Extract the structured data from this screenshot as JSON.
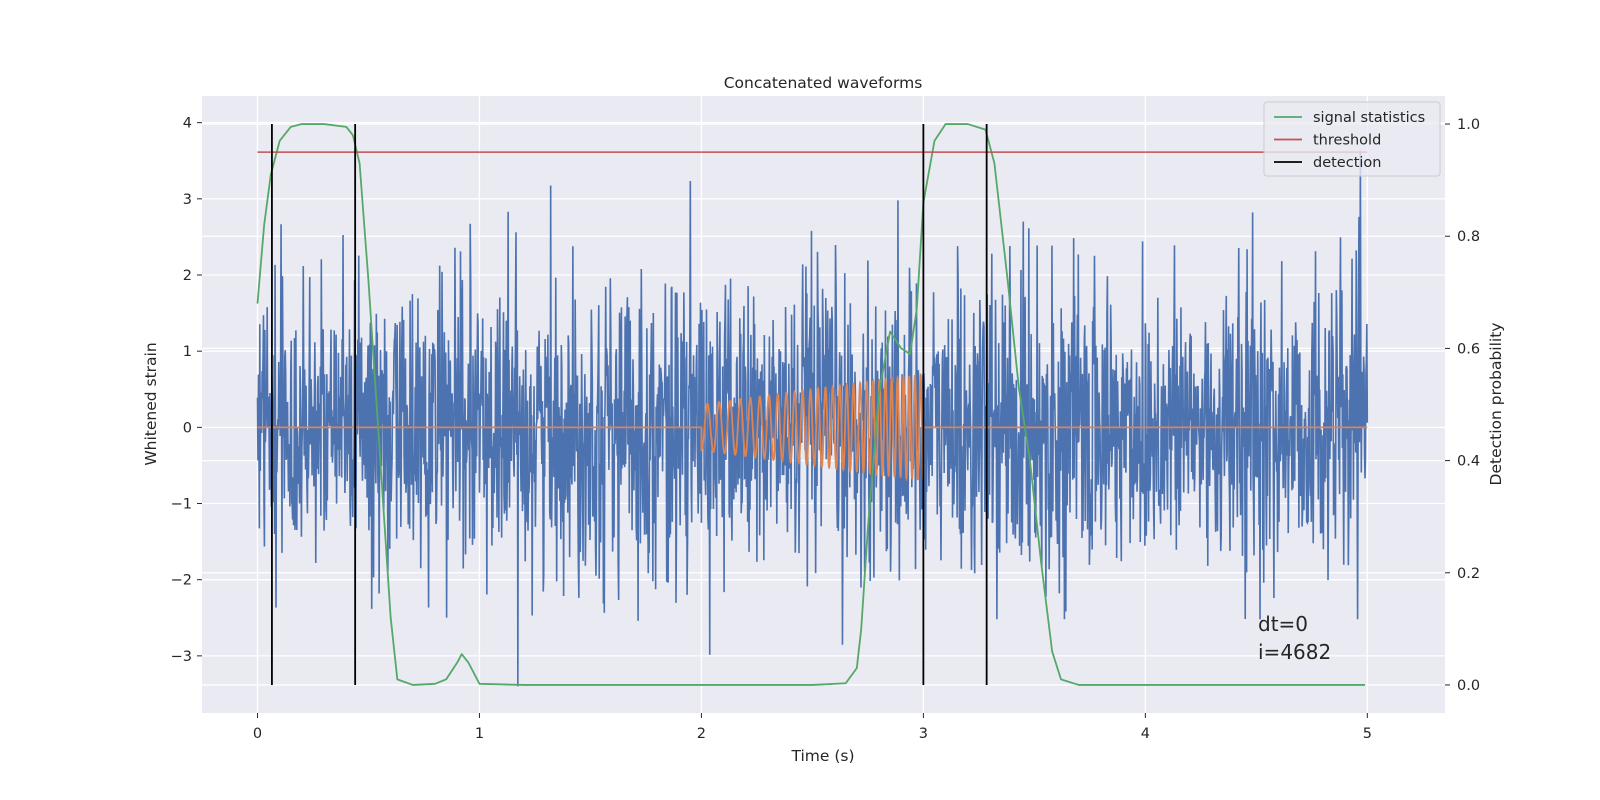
{
  "chart_data": {
    "type": "line",
    "title": "Concatenated waveforms",
    "xlabel": "Time (s)",
    "ylabel": "Whitened strain",
    "y2label": "Detection probability",
    "xlim": [
      -0.25,
      5.35
    ],
    "ylim": [
      -3.75,
      4.35
    ],
    "y2lim": [
      -0.05,
      1.05
    ],
    "xticks": [
      0,
      1,
      2,
      3,
      4,
      5
    ],
    "yticks": [
      -3,
      -2,
      -1,
      0,
      1,
      2,
      3,
      4
    ],
    "y2ticks": [
      0.0,
      0.2,
      0.4,
      0.6,
      0.8,
      1.0
    ],
    "xtick_labels": [
      "0",
      "1",
      "2",
      "3",
      "4",
      "5"
    ],
    "ytick_labels": [
      "−3",
      "−2",
      "−1",
      "0",
      "1",
      "2",
      "3",
      "4"
    ],
    "y2tick_labels": [
      "0.0",
      "0.2",
      "0.4",
      "0.6",
      "0.8",
      "1.0"
    ],
    "grid": true,
    "legend_position": "top-right",
    "legend": [
      {
        "label": "signal statistics",
        "color": "#55a868"
      },
      {
        "label": "threshold",
        "color": "#c44e52"
      },
      {
        "label": "detection",
        "color": "#000000"
      }
    ],
    "annotations": [
      "dt=0",
      "i=4682"
    ],
    "series": [
      {
        "axis": "left",
        "color": "#4c72b0",
        "description": "whitened strain noise, t 0-5 s, mostly within ±2.5, peaks near 4.0",
        "x_range": [
          0,
          5
        ],
        "envelope": [
          -3.4,
          4.0
        ]
      },
      {
        "axis": "left",
        "color": "#dd8452",
        "description": "injected chirp, zero except 2.0-3.0 s",
        "x": [
          0,
          2.0,
          3.0,
          5.0
        ],
        "chirp": {
          "start": 2.0,
          "end": 3.0,
          "amp_start": 0.3,
          "amp_end": 0.7,
          "f_start": 18,
          "f_end": 40
        }
      },
      {
        "name": "signal statistics",
        "axis": "right",
        "color": "#55a868",
        "x": [
          0.0,
          0.03,
          0.06,
          0.1,
          0.15,
          0.2,
          0.3,
          0.4,
          0.43,
          0.46,
          0.5,
          0.55,
          0.6,
          0.63,
          0.7,
          0.8,
          0.85,
          0.9,
          0.92,
          0.95,
          1.0,
          1.2,
          1.5,
          2.0,
          2.5,
          2.65,
          2.7,
          2.72,
          2.75,
          2.8,
          2.85,
          2.9,
          2.94,
          2.97,
          3.0,
          3.05,
          3.1,
          3.2,
          3.28,
          3.32,
          3.38,
          3.43,
          3.48,
          3.53,
          3.58,
          3.62,
          3.7,
          4.0,
          4.5,
          4.99
        ],
        "values": [
          0.68,
          0.82,
          0.91,
          0.97,
          0.995,
          1.0,
          1.0,
          0.995,
          0.98,
          0.93,
          0.72,
          0.42,
          0.12,
          0.01,
          0.0,
          0.002,
          0.01,
          0.04,
          0.055,
          0.04,
          0.002,
          0.0,
          0.0,
          0.0,
          0.0,
          0.003,
          0.03,
          0.1,
          0.28,
          0.52,
          0.63,
          0.6,
          0.59,
          0.67,
          0.86,
          0.97,
          1.0,
          1.0,
          0.99,
          0.93,
          0.72,
          0.53,
          0.4,
          0.22,
          0.06,
          0.01,
          0.0,
          0.0,
          0.0,
          0.0
        ]
      },
      {
        "name": "threshold",
        "axis": "right",
        "color": "#c44e52",
        "x": [
          0,
          5
        ],
        "values": [
          0.95,
          0.95
        ]
      },
      {
        "name": "detection",
        "axis": "right",
        "color": "#000000",
        "type": "vlines",
        "x": [
          0.065,
          0.44,
          3.0,
          3.285
        ],
        "ymin": 0.0,
        "ymax": 1.0
      }
    ]
  }
}
